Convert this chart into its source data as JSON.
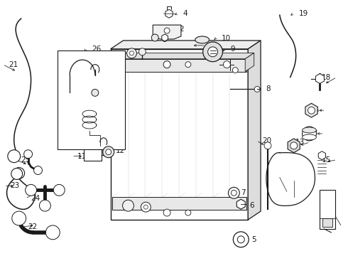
{
  "bg_color": "#ffffff",
  "line_color": "#1a1a1a",
  "fig_width": 4.9,
  "fig_height": 3.6,
  "dpi": 100,
  "font_size": 7.5
}
